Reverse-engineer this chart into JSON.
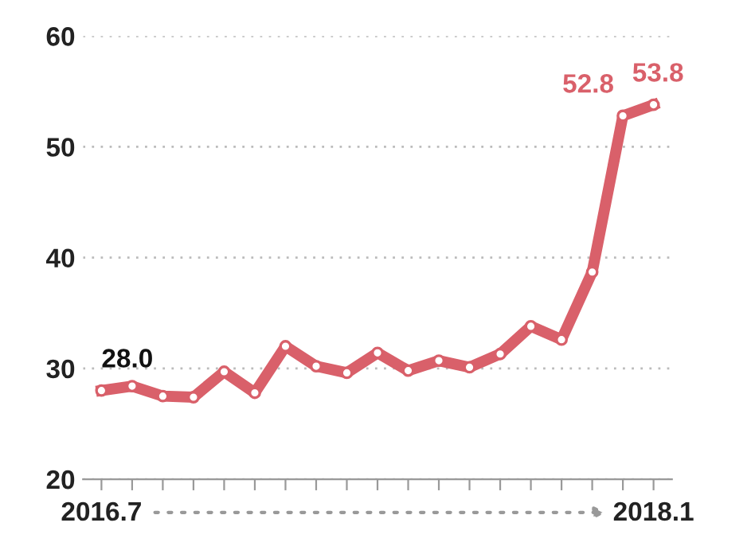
{
  "chart_data": {
    "type": "line",
    "categories": [
      "2016.7",
      null,
      null,
      null,
      null,
      null,
      null,
      null,
      null,
      null,
      null,
      null,
      null,
      null,
      null,
      null,
      null,
      null,
      "2018.1"
    ],
    "series": [
      {
        "color": "#d9606a",
        "values": [
          28.0,
          28.4,
          27.5,
          27.4,
          29.7,
          27.8,
          32.0,
          30.2,
          29.6,
          31.4,
          29.8,
          30.7,
          30.1,
          31.3,
          33.8,
          32.6,
          38.7,
          52.8,
          53.8
        ],
        "value_labels": [
          "28.0",
          null,
          null,
          null,
          null,
          null,
          null,
          null,
          null,
          null,
          null,
          null,
          null,
          null,
          null,
          null,
          null,
          "52.8",
          "53.8"
        ]
      }
    ],
    "ylim": [
      20,
      60
    ],
    "yticks": [
      20,
      30,
      40,
      50,
      60
    ],
    "grid": "y",
    "marker": "circle",
    "line_style": "solid",
    "legend": false
  }
}
